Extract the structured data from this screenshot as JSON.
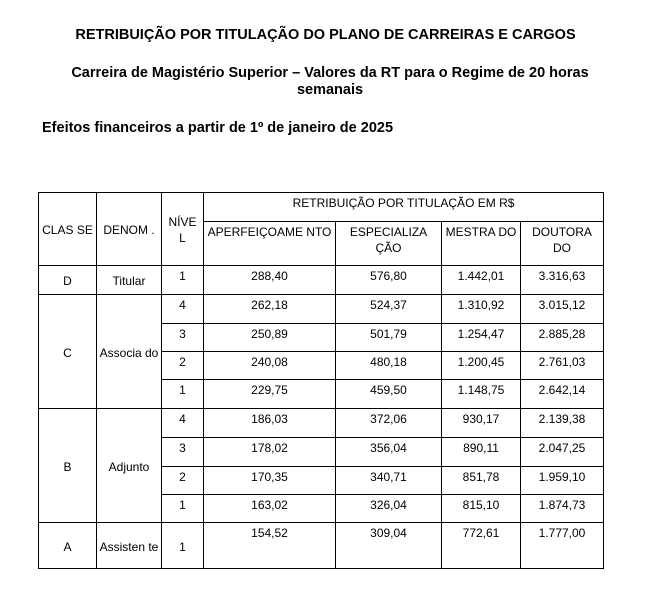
{
  "title": "RETRIBUIÇÃO POR TITULAÇÃO DO PLANO DE CARREIRAS E CARGOS",
  "subtitle": "Carreira de Magistério Superior – Valores da RT para o Regime de 20 horas semanais",
  "effective": "Efeitos financeiros a partir de 1º de janeiro de 2025",
  "table": {
    "headers": {
      "classe": "CLAS SE",
      "denom": "DENOM .",
      "nivel": "NÍVE L",
      "group": "RETRIBUIÇÃO POR TITULAÇÃO EM R$",
      "aperf": "APERFEIÇOAME NTO",
      "espec": "ESPECIALIZA ÇÃO",
      "mestr": "MESTRA DO",
      "dout": "DOUTORA DO"
    },
    "groups": [
      {
        "classe": "D",
        "denom": "Titular",
        "rows": [
          {
            "nivel": "1",
            "aperf": "288,40",
            "espec": "576,80",
            "mestr": "1.442,01",
            "dout": "3.316,63"
          }
        ]
      },
      {
        "classe": "C",
        "denom": "Associa do",
        "rows": [
          {
            "nivel": "4",
            "aperf": "262,18",
            "espec": "524,37",
            "mestr": "1.310,92",
            "dout": "3.015,12"
          },
          {
            "nivel": "3",
            "aperf": "250,89",
            "espec": "501,79",
            "mestr": "1.254,47",
            "dout": "2.885,28"
          },
          {
            "nivel": "2",
            "aperf": "240,08",
            "espec": "480,18",
            "mestr": "1.200,45",
            "dout": "2.761,03"
          },
          {
            "nivel": "1",
            "aperf": "229,75",
            "espec": "459,50",
            "mestr": "1.148,75",
            "dout": "2.642,14"
          }
        ]
      },
      {
        "classe": "B",
        "denom": "Adjunto",
        "rows": [
          {
            "nivel": "4",
            "aperf": "186,03",
            "espec": "372,06",
            "mestr": "930,17",
            "dout": "2.139,38"
          },
          {
            "nivel": "3",
            "aperf": "178,02",
            "espec": "356,04",
            "mestr": "890,11",
            "dout": "2.047,25"
          },
          {
            "nivel": "2",
            "aperf": "170,35",
            "espec": "340,71",
            "mestr": "851,78",
            "dout": "1.959,10"
          },
          {
            "nivel": "1",
            "aperf": "163,02",
            "espec": "326,04",
            "mestr": "815,10",
            "dout": "1.874,73"
          }
        ]
      },
      {
        "classe": "A",
        "denom": "Assisten te",
        "rows": [
          {
            "nivel": "1",
            "aperf": "154,52",
            "espec": "309,04",
            "mestr": "772,61",
            "dout": "1.777,00"
          }
        ]
      }
    ]
  }
}
